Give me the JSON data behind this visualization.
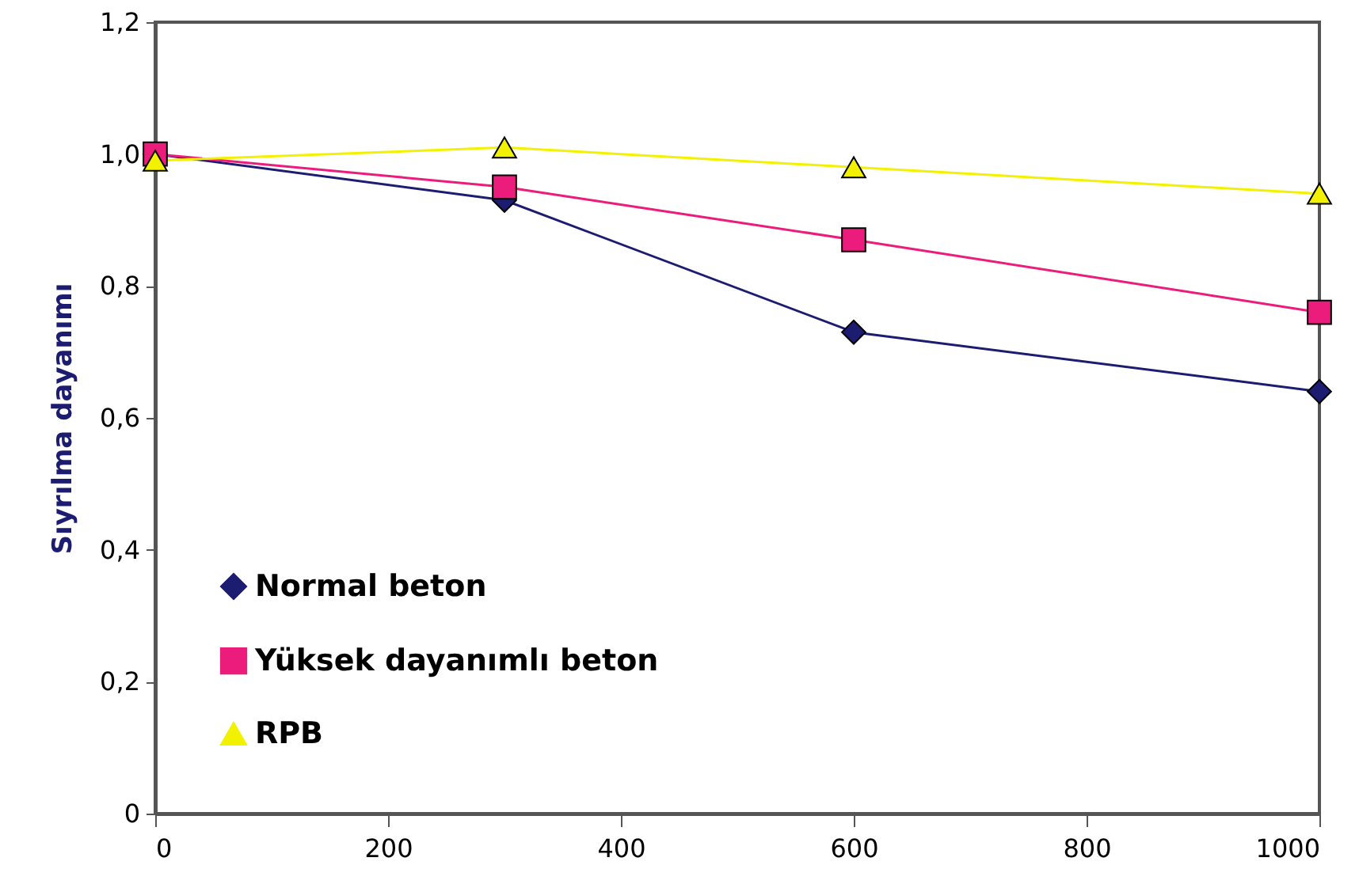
{
  "chart_data": {
    "type": "line",
    "ylabel": "Sıyrılma dayanımı",
    "x": [
      0,
      300,
      600,
      1000
    ],
    "xlim": [
      0,
      1000
    ],
    "xticks": [
      0,
      200,
      400,
      600,
      800,
      1000
    ],
    "ylim": [
      0,
      1.2
    ],
    "yticks": [
      0,
      {
        "value": 0.2,
        "label": "0,2"
      },
      {
        "value": 0.4,
        "label": "0,4"
      },
      {
        "value": 0.6,
        "label": "0,6"
      },
      {
        "value": 0.8,
        "label": "0,8"
      },
      {
        "value": 1.0,
        "label": "1,0"
      },
      {
        "value": 1.2,
        "label": "1,2"
      }
    ],
    "grid": false,
    "legend": "bottom left",
    "line_style": "solid",
    "series": [
      {
        "name": "Normal beton",
        "color": "#1c1c70",
        "marker": "diamond",
        "values": [
          1.0,
          0.93,
          0.73,
          0.64
        ]
      },
      {
        "name": "Yüksek dayanımlı beton",
        "color": "#ec1c7c",
        "marker": "square",
        "values": [
          1.0,
          0.95,
          0.87,
          0.76
        ]
      },
      {
        "name": "RPB",
        "color": "#f2f200",
        "marker": "triangle",
        "values": [
          0.99,
          1.01,
          0.98,
          0.94
        ]
      }
    ]
  }
}
